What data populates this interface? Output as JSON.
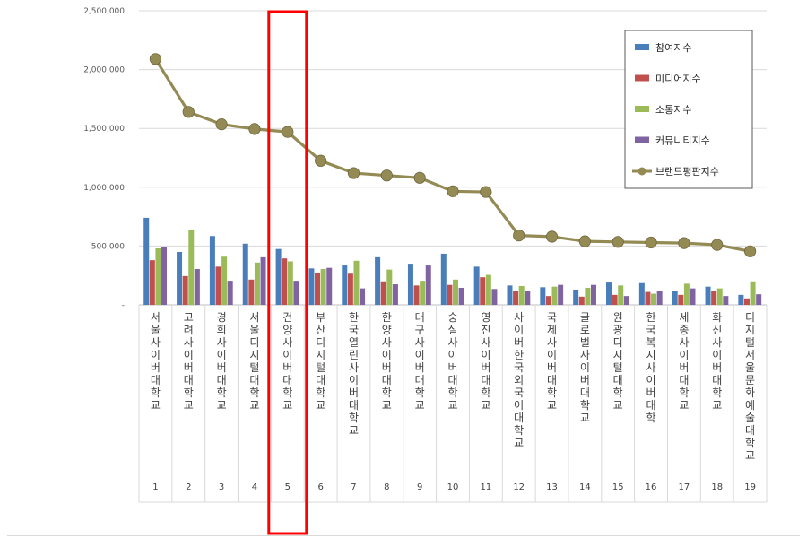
{
  "chart_data": {
    "type": "bar",
    "y_ticks": [
      "2,500,000",
      "2,000,000",
      "1,500,000",
      "1,000,000",
      "500,000",
      "-"
    ],
    "ylim": [
      0,
      2500000
    ],
    "categories": [
      "서울사이버대학교",
      "고려사이버대학교",
      "경희사이버대학교",
      "서울디지털대학교",
      "건양사이버대학교",
      "부산디지털대학교",
      "한국열린사이버대학교",
      "한양사이버대학교",
      "대구사이버대학교",
      "숭실사이버대학교",
      "영진사이버대학교",
      "사이버한국외국어대학교",
      "국제사이버대학교",
      "글로벌사이버대학교",
      "원광디지털대학교",
      "한국복지사이버대학",
      "세종사이버대학교",
      "화신사이버대학교",
      "디지털서울문화예술대학교"
    ],
    "ranks": [
      "1",
      "2",
      "3",
      "4",
      "5",
      "6",
      "7",
      "8",
      "9",
      "10",
      "11",
      "12",
      "13",
      "14",
      "15",
      "16",
      "17",
      "18",
      "19"
    ],
    "series": [
      {
        "name": "참여지수",
        "color": "#4a7ebb",
        "values": [
          740000,
          450000,
          585000,
          520000,
          475000,
          310000,
          335000,
          405000,
          350000,
          435000,
          325000,
          165000,
          150000,
          130000,
          190000,
          185000,
          120000,
          155000,
          85000
        ]
      },
      {
        "name": "미디어지수",
        "color": "#c0504d",
        "values": [
          380000,
          245000,
          325000,
          215000,
          395000,
          275000,
          265000,
          200000,
          165000,
          170000,
          235000,
          120000,
          75000,
          70000,
          85000,
          110000,
          85000,
          120000,
          55000
        ]
      },
      {
        "name": "소통지수",
        "color": "#9bbb59",
        "values": [
          480000,
          640000,
          410000,
          360000,
          370000,
          305000,
          375000,
          300000,
          205000,
          215000,
          255000,
          160000,
          155000,
          145000,
          165000,
          95000,
          180000,
          140000,
          200000
        ]
      },
      {
        "name": "커뮤니티지수",
        "color": "#8064a2",
        "values": [
          490000,
          305000,
          205000,
          405000,
          205000,
          315000,
          140000,
          175000,
          335000,
          145000,
          135000,
          120000,
          170000,
          170000,
          75000,
          120000,
          140000,
          75000,
          90000
        ]
      }
    ],
    "line": {
      "name": "브랜드평판지수",
      "color": "#948a54",
      "values": [
        2090000,
        1640000,
        1535000,
        1495000,
        1470000,
        1225000,
        1120000,
        1100000,
        1080000,
        965000,
        960000,
        590000,
        580000,
        540000,
        535000,
        530000,
        525000,
        510000,
        455000
      ]
    },
    "highlight_index": 4,
    "highlight_color": "#ff0000",
    "legend_position": "top-right",
    "grid": true
  }
}
